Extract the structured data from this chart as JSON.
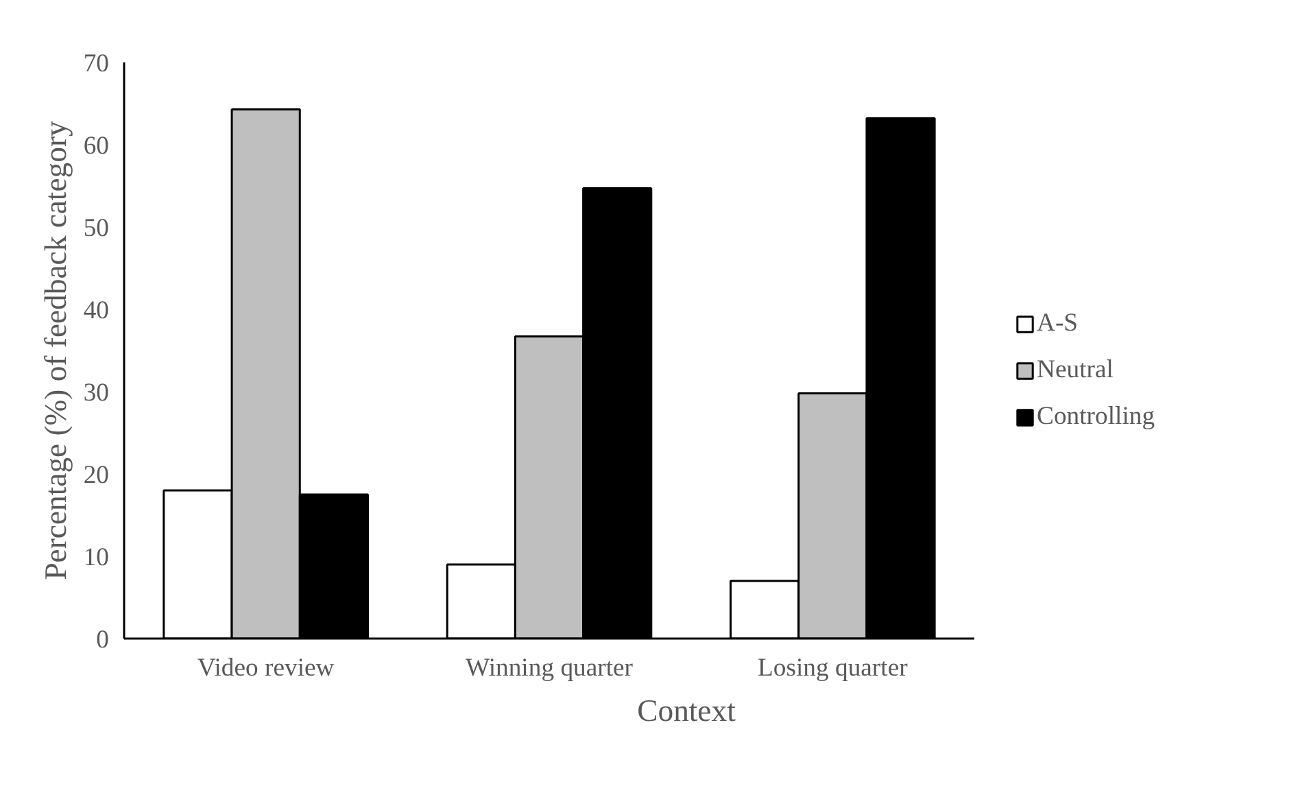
{
  "chart_data": {
    "type": "bar",
    "xlabel": "Context",
    "ylabel": "Percentage (%) of feedback category",
    "categories": [
      "Video review",
      "Winning quarter",
      "Losing quarter"
    ],
    "series": [
      {
        "name": "A-S",
        "color": "#ffffff",
        "values": [
          18.0,
          9.0,
          7.0
        ]
      },
      {
        "name": "Neutral",
        "color": "#bfbfbf",
        "values": [
          64.3,
          36.7,
          29.8
        ]
      },
      {
        "name": "Controlling",
        "color": "#000000",
        "values": [
          17.5,
          54.7,
          63.2
        ]
      }
    ],
    "ylim": [
      0,
      70
    ],
    "yticks": [
      0,
      10,
      20,
      30,
      40,
      50,
      60,
      70
    ],
    "grid": false,
    "legend": "right"
  }
}
